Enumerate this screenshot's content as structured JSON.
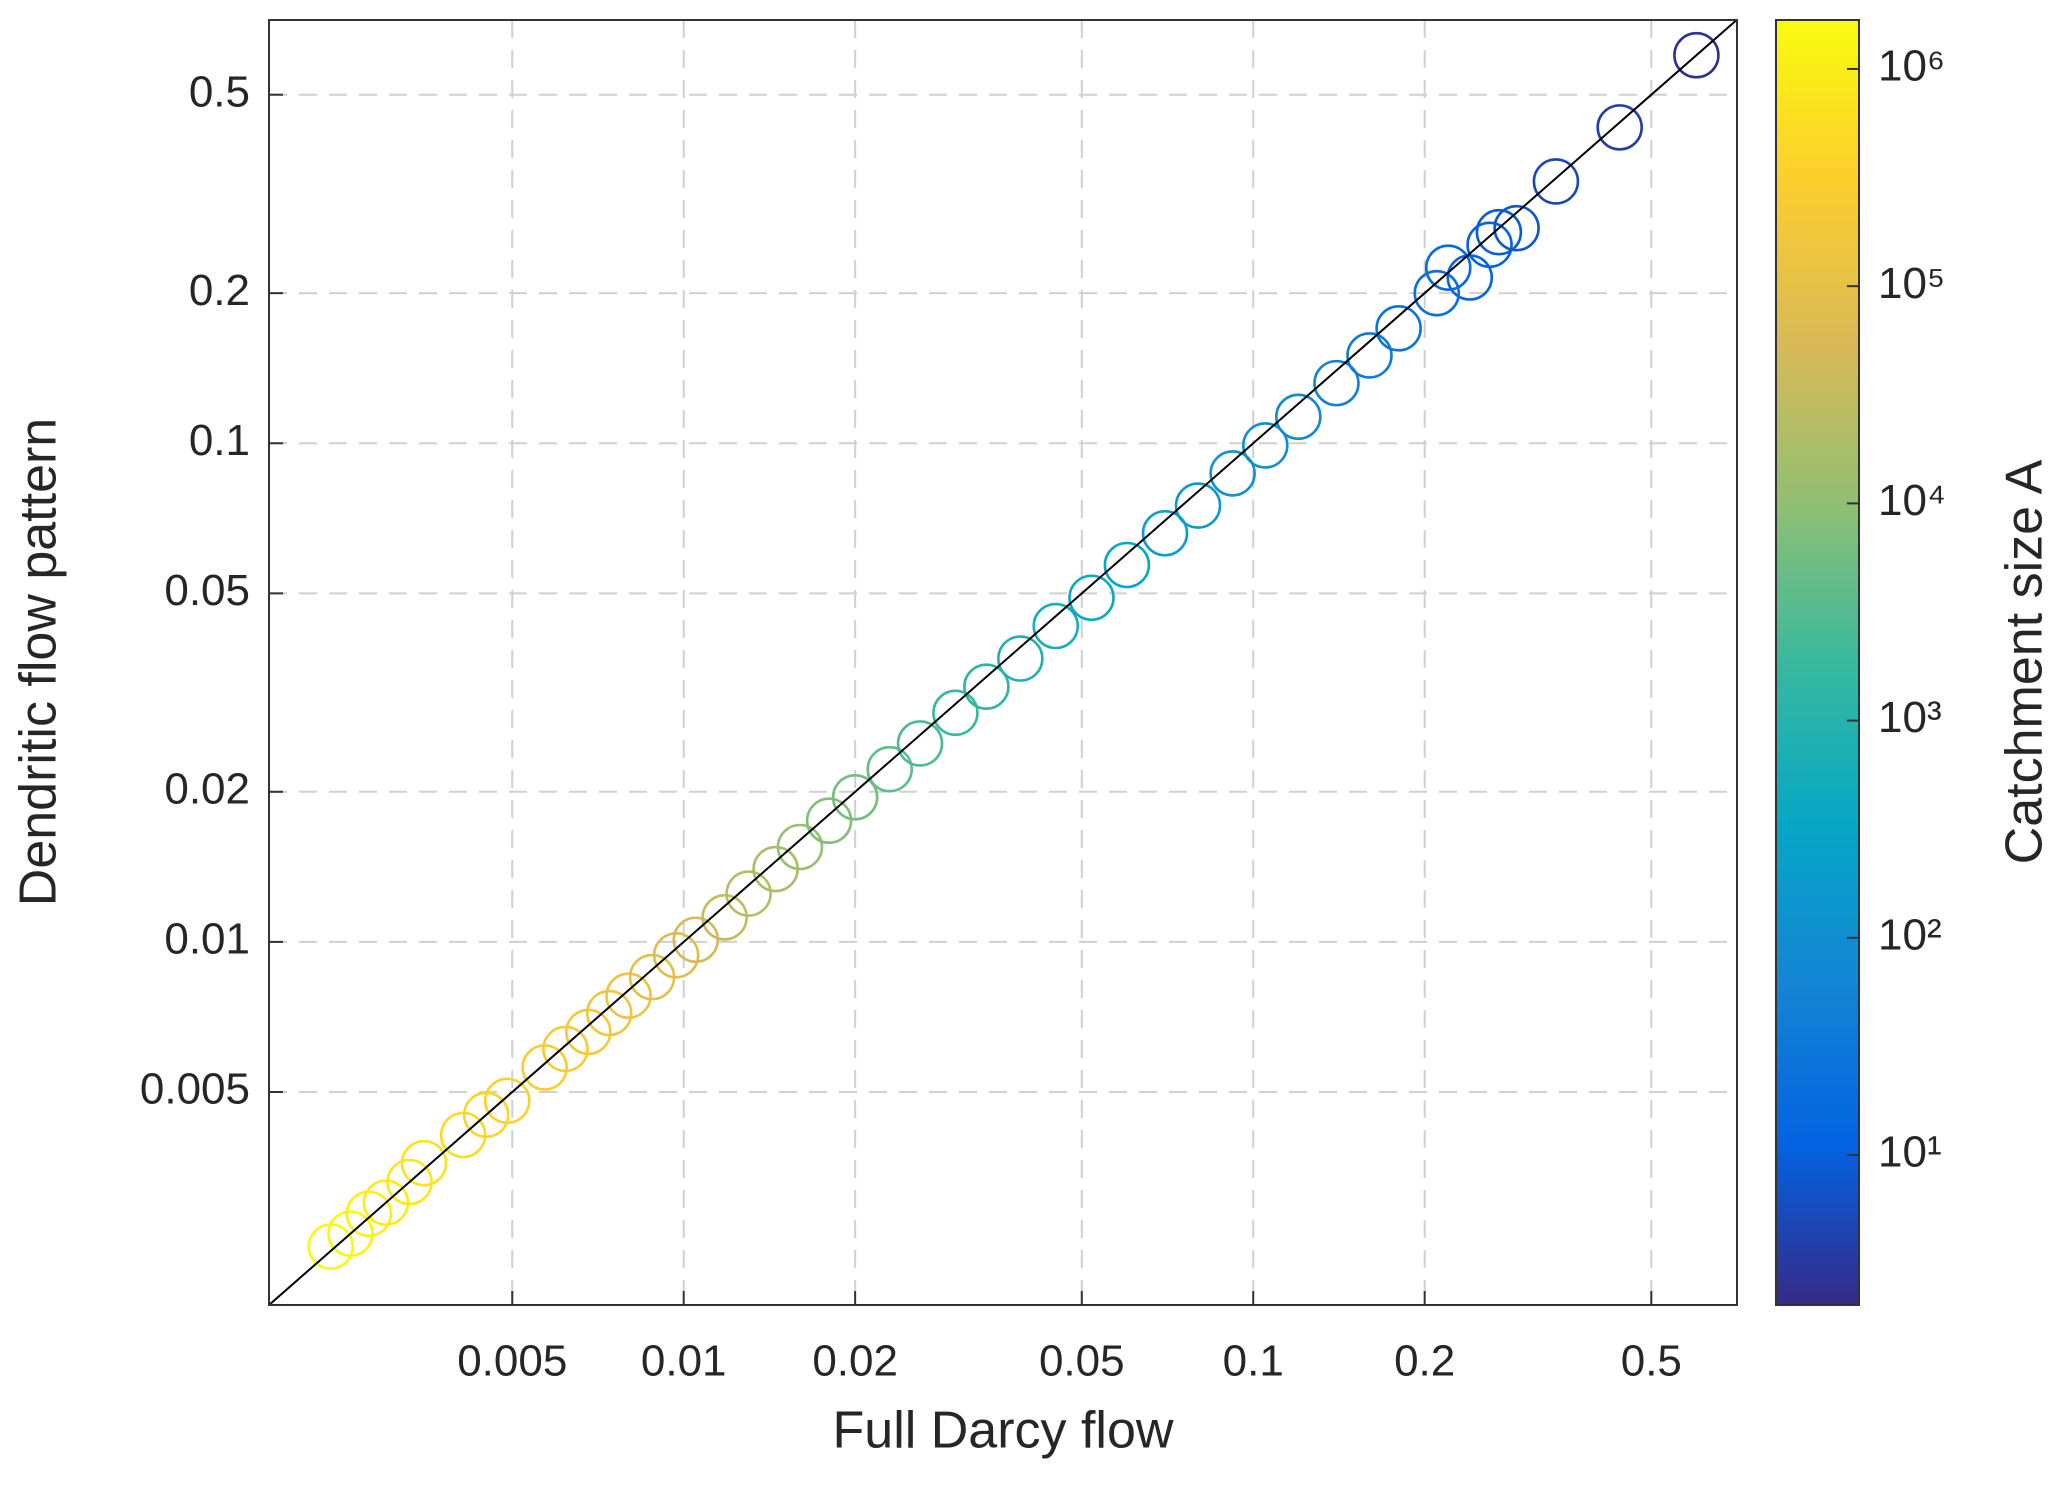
{
  "chart_data": {
    "type": "scatter",
    "xlabel": "Full Darcy flow",
    "ylabel": "Dendritic flow pattern",
    "xscale": "log",
    "yscale": "log",
    "xlim": [
      0.00187,
      0.707
    ],
    "ylim": [
      0.00187,
      0.706
    ],
    "xticks": [
      0.005,
      0.01,
      0.02,
      0.05,
      0.1,
      0.2,
      0.5
    ],
    "yticks": [
      0.005,
      0.01,
      0.02,
      0.05,
      0.1,
      0.2,
      0.5
    ],
    "grid": true,
    "diagonal": true,
    "marker": "open-circle",
    "x": [
      0.0024,
      0.0026,
      0.0028,
      0.003,
      0.0033,
      0.0035,
      0.0041,
      0.0045,
      0.0049,
      0.0057,
      0.0062,
      0.0068,
      0.0074,
      0.008,
      0.0088,
      0.0097,
      0.0105,
      0.0118,
      0.013,
      0.0145,
      0.016,
      0.018,
      0.02,
      0.023,
      0.026,
      0.03,
      0.034,
      0.039,
      0.045,
      0.052,
      0.06,
      0.07,
      0.08,
      0.092,
      0.105,
      0.12,
      0.14,
      0.16,
      0.18,
      0.21,
      0.22,
      0.24,
      0.26,
      0.27,
      0.29,
      0.34,
      0.44,
      0.6
    ],
    "values": [
      0.00245,
      0.0026,
      0.00285,
      0.003,
      0.0033,
      0.0036,
      0.0041,
      0.0045,
      0.0048,
      0.0056,
      0.0061,
      0.0066,
      0.0072,
      0.0078,
      0.0085,
      0.0094,
      0.0101,
      0.0112,
      0.0125,
      0.014,
      0.0155,
      0.0175,
      0.0195,
      0.0222,
      0.025,
      0.0288,
      0.0325,
      0.037,
      0.043,
      0.049,
      0.057,
      0.066,
      0.075,
      0.087,
      0.099,
      0.113,
      0.132,
      0.15,
      0.17,
      0.2,
      0.225,
      0.215,
      0.25,
      0.265,
      0.27,
      0.335,
      0.43,
      0.6
    ],
    "color_values": [
      1600000,
      1400000,
      1200000,
      1000000,
      800000,
      700000,
      500000,
      400000,
      350000,
      280000,
      240000,
      200000,
      160000,
      130000,
      100000,
      70000,
      50000,
      35000,
      25000,
      18000,
      12000,
      8000,
      6000,
      4000,
      2800,
      1800,
      1300,
      900,
      650,
      450,
      320,
      230,
      170,
      125,
      95,
      70,
      50,
      38,
      28,
      20,
      16,
      14,
      11,
      9,
      8,
      5,
      3.5,
      2.5
    ],
    "colorbar": {
      "label": "Catchment size A",
      "scale": "log",
      "lim": [
        2.04,
        1680000
      ],
      "ticks": [
        {
          "value": 10,
          "label": "10¹"
        },
        {
          "value": 100,
          "label": "10²"
        },
        {
          "value": 1000,
          "label": "10³"
        },
        {
          "value": 10000,
          "label": "10⁴"
        },
        {
          "value": 100000,
          "label": "10⁵"
        },
        {
          "value": 1000000,
          "label": "10⁶"
        }
      ],
      "colormap": [
        "#352a87",
        "#0363e1",
        "#1485d4",
        "#06a7c6",
        "#38b99e",
        "#92bf73",
        "#d9ba56",
        "#fcce2e",
        "#f9fb0e"
      ]
    }
  }
}
